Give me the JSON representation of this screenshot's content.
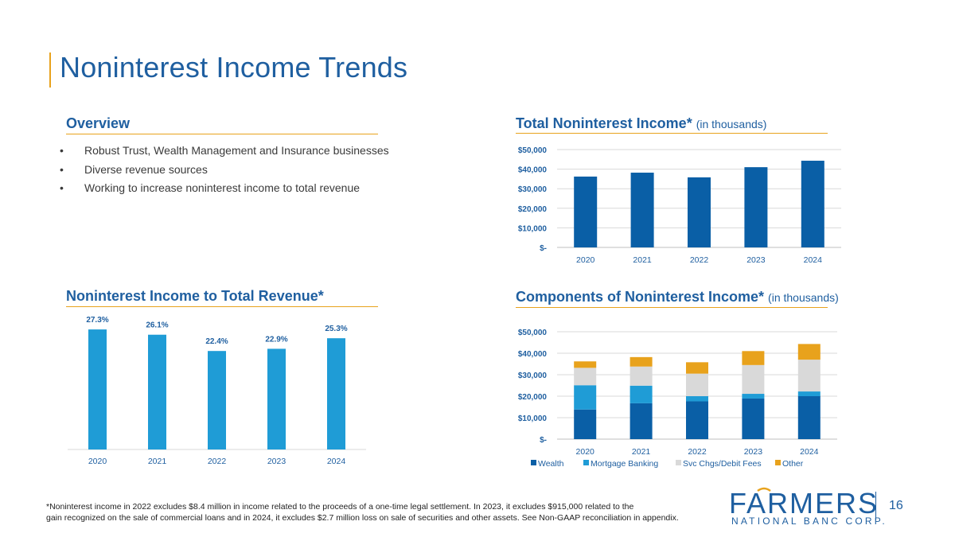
{
  "page": {
    "title": "Noninterest Income Trends",
    "page_number": "16",
    "footnote_line1": "*Noninterest income in 2022 excludes $8.4 million in income related to the proceeds of a one-time legal settlement. In 2023, it excludes $915,000 related to the",
    "footnote_line2": "gain recognized on the sale of commercial loans and in 2024, it excludes $2.7 million loss on sale of securities and other assets.  See Non-GAAP reconciliation in appendix."
  },
  "logo": {
    "word": "FARMERS",
    "subtitle": "NATIONAL BANC CORP."
  },
  "overview": {
    "heading": "Overview",
    "bullets": [
      "Robust Trust, Wealth Management and Insurance businesses",
      "Diverse revenue sources",
      "Working to increase noninterest income to total revenue"
    ],
    "bullet_glyph": "•"
  },
  "colors": {
    "brand_blue": "#1f5fa0",
    "bar_dark": "#0a5fa6",
    "bar_light": "#1f9cd6",
    "gold": "#e8a21c",
    "gray": "#d9d9d9"
  },
  "chart_data": [
    {
      "id": "total",
      "type": "bar",
      "title": "Total Noninterest Income*",
      "title_note": "(in thousands)",
      "categories": [
        "2020",
        "2021",
        "2022",
        "2023",
        "2024"
      ],
      "values": [
        36200,
        38200,
        35800,
        41000,
        44300
      ],
      "ylim": [
        0,
        50000
      ],
      "yticks": [
        50000,
        40000,
        30000,
        20000,
        10000,
        0
      ],
      "ytick_labels": [
        "$50,000",
        "$40,000",
        "$30,000",
        "$20,000",
        "$10,000",
        "$-"
      ],
      "grid": true
    },
    {
      "id": "ratio",
      "type": "bar",
      "title": "Noninterest Income to Total Revenue*",
      "categories": [
        "2020",
        "2021",
        "2022",
        "2023",
        "2024"
      ],
      "values": [
        27.3,
        26.1,
        22.4,
        22.9,
        25.3
      ],
      "data_labels": [
        "27.3%",
        "26.1%",
        "22.4%",
        "22.9%",
        "25.3%"
      ],
      "ylim": [
        0,
        30
      ],
      "grid": false
    },
    {
      "id": "components",
      "type": "bar",
      "stacked": true,
      "title": "Components of Noninterest Income*",
      "title_note": "(in thousands)",
      "categories": [
        "2020",
        "2021",
        "2022",
        "2023",
        "2024"
      ],
      "series": [
        {
          "name": "Wealth",
          "values": [
            13800,
            16700,
            17600,
            18900,
            20000
          ]
        },
        {
          "name": "Mortgage Banking",
          "values": [
            11300,
            8200,
            2400,
            2200,
            2200
          ]
        },
        {
          "name": "Svc Chgs/Debit Fees",
          "values": [
            8100,
            8900,
            10500,
            13400,
            14800
          ]
        },
        {
          "name": "Other",
          "values": [
            3000,
            4400,
            5300,
            6500,
            7300
          ]
        }
      ],
      "ylim": [
        0,
        50000
      ],
      "yticks": [
        50000,
        40000,
        30000,
        20000,
        10000,
        0
      ],
      "ytick_labels": [
        "$50,000",
        "$40,000",
        "$30,000",
        "$20,000",
        "$10,000",
        "$-"
      ],
      "legend_position": "bottom",
      "grid": true
    }
  ]
}
